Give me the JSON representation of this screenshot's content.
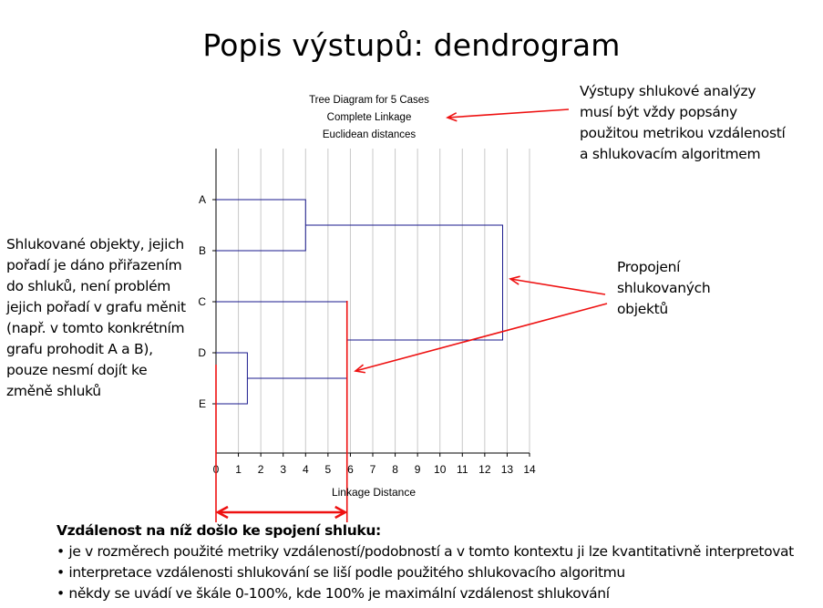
{
  "slide": {
    "title": "Popis výstupů: dendrogram"
  },
  "chart_caption": {
    "line1": "Tree Diagram for 5 Cases",
    "line2": "Complete Linkage",
    "line3": "Euclidean distances"
  },
  "chart_data": {
    "type": "dendrogram",
    "orientation": "horizontal",
    "leaves": [
      "A",
      "B",
      "C",
      "D",
      "E"
    ],
    "merges": [
      {
        "left": "D",
        "right": "E",
        "distance": 1.4
      },
      {
        "left": "A",
        "right": "B",
        "distance": 4.0
      },
      {
        "left": "C",
        "right": "DE",
        "distance": 5.85
      },
      {
        "left": "AB",
        "right": "CDE",
        "distance": 12.8
      }
    ],
    "xlim": [
      0,
      14
    ],
    "x_ticks": [
      "0",
      "1",
      "2",
      "3",
      "4",
      "5",
      "6",
      "7",
      "8",
      "9",
      "10",
      "11",
      "12",
      "13",
      "14"
    ],
    "xlabel": "Linkage Distance",
    "grid": "vertical",
    "line_color": "#1a1a8c",
    "annotation_color": "#ee1111"
  },
  "notes": {
    "top_right": [
      "Výstupy shlukové analýzy",
      "musí být vždy popsány",
      "použitou metrikou vzdáleností",
      "a shlukovacím algoritmem"
    ],
    "left": [
      "Shlukované objekty, jejich",
      "pořadí je dáno přiřazením",
      "do shluků, není problém",
      "jejich pořadí v grafu měnit",
      "(např. v tomto konkrétním",
      "grafu prohodit A a B),",
      "pouze nesmí dojít ke",
      "změně shluků"
    ],
    "right": [
      "Propojení",
      "shlukovaných",
      "objektů"
    ]
  },
  "bottom": {
    "heading": "Vzdálenost na níž došlo ke spojení shluku:",
    "bullets": [
      "• je v rozměrech použité metriky vzdáleností/podobností a v tomto kontextu ji lze kvantitativně interpretovat",
      "• interpretace vzdálenosti shlukování se liší podle použitého shlukovacího algoritmu",
      "• někdy se uvádí ve škále 0-100%, kde 100% je maximální vzdálenost shlukování"
    ]
  }
}
